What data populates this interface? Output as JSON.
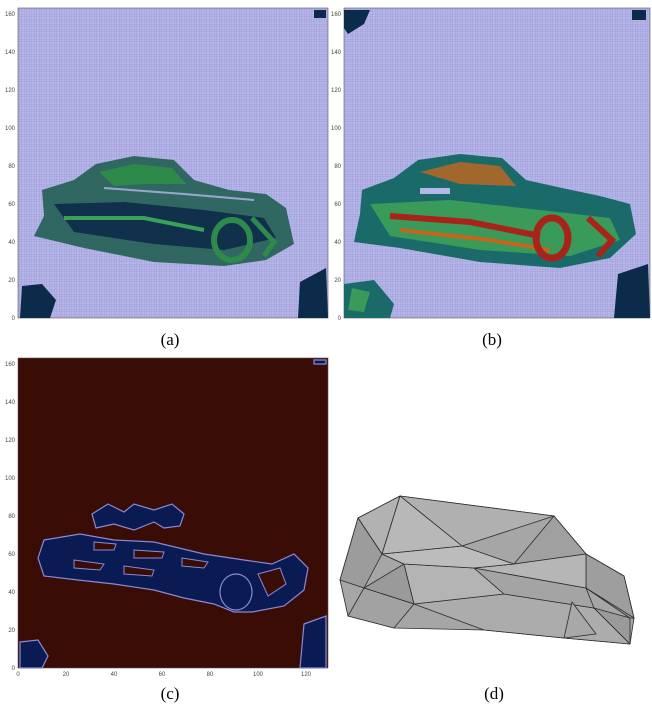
{
  "figure": {
    "panels": [
      {
        "id": "a",
        "caption": "(a)",
        "kind": "grid-heatmap",
        "background_color": "#b4b4e6",
        "x_ticks": [
          "0",
          "20",
          "40",
          "60",
          "80",
          "100",
          "120"
        ],
        "y_ticks": [
          "0",
          "20",
          "40",
          "60",
          "80",
          "100",
          "120",
          "140",
          "160"
        ],
        "colors": {
          "blob_dark": "#0c2a4a",
          "blob_green": "#2e8a4a",
          "blob_teal": "#1a6a6a"
        }
      },
      {
        "id": "b",
        "caption": "(b)",
        "kind": "grid-heatmap",
        "background_color": "#b4b4e6",
        "x_ticks": [
          "0",
          "20",
          "40",
          "60",
          "80",
          "100",
          "120"
        ],
        "y_ticks": [
          "0",
          "20",
          "40",
          "60",
          "80",
          "100",
          "120",
          "140",
          "160"
        ],
        "colors": {
          "blob_dark": "#0c2a4a",
          "blob_green": "#3a9a5a",
          "blob_red": "#a8241a",
          "blob_orange": "#c4661e"
        }
      },
      {
        "id": "c",
        "caption": "(c)",
        "kind": "binary-mask",
        "background_color": "#3a0c06",
        "x_ticks": [
          "0",
          "20",
          "40",
          "60",
          "80",
          "100",
          "120"
        ],
        "y_ticks": [
          "0",
          "20",
          "40",
          "60",
          "80",
          "100",
          "120",
          "140",
          "160"
        ],
        "colors": {
          "blob_fill": "#0a1a52",
          "blob_edge": "#8a8ad6"
        }
      },
      {
        "id": "d",
        "caption": "(d)",
        "kind": "3d-convex-hull",
        "colors": {
          "face": "#a8a8a8",
          "edge": "#2a2a2a"
        }
      }
    ]
  }
}
